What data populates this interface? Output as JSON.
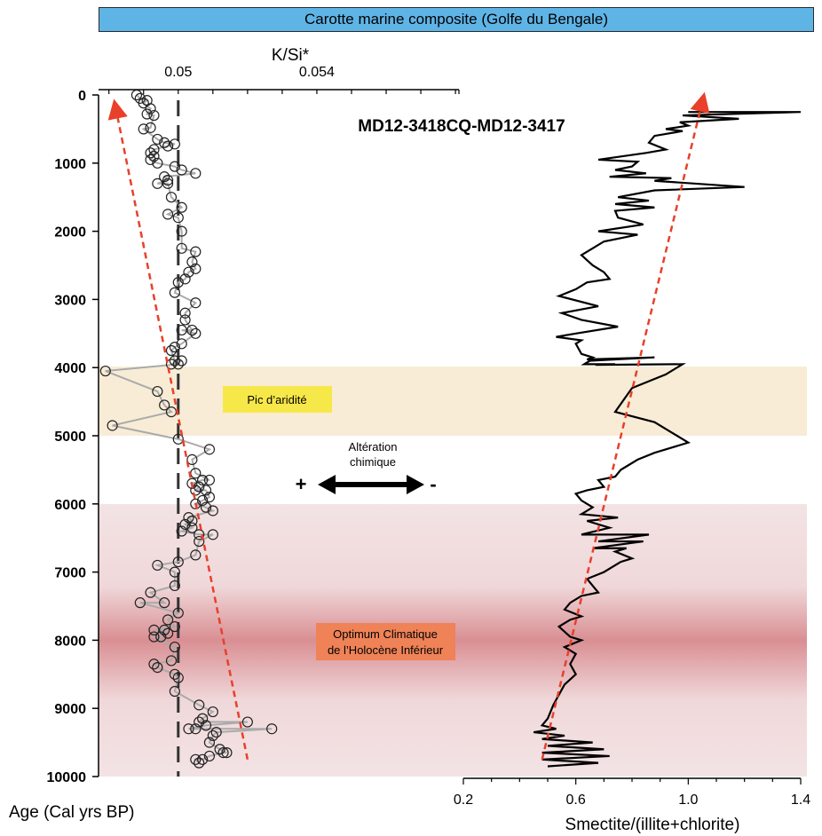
{
  "banner": "Carotte marine composite (Golfe du Bengale)",
  "core_label": "MD12-3418CQ-MD12-3417",
  "colors": {
    "banner_bg": "#5fb4e6",
    "aridity_band": "#f8ecd6",
    "optimum_band_light": "#f3e3e4",
    "optimum_band_dark": "#d98f93",
    "aridity_label_bg": "#f7e849",
    "optimum_label_bg": "#ef8257",
    "trend_arrow": "#e8402a",
    "ksi_line": "#aaaaaa",
    "smectite_line": "#000000"
  },
  "annotations": {
    "aridity": "Pic d’aridité",
    "optimum_line1": "Optimum Climatique",
    "optimum_line2": "de l’Holocène Inférieur",
    "alteration_line1": "Altération",
    "alteration_line2": "chimique",
    "plus": "+",
    "minus": "-"
  },
  "chart_data": [
    {
      "type": "scatter",
      "ylabel": "Age (Cal yrs BP)",
      "xlabel": "K/Si*",
      "x_ticks": [
        "0.05",
        "0.054"
      ],
      "y_ticks": [
        "0",
        "1000",
        "2000",
        "3000",
        "4000",
        "5000",
        "6000",
        "7000",
        "8000",
        "9000",
        "10000"
      ],
      "xlim": [
        0.0477,
        0.0581
      ],
      "ylim": [
        0,
        10000
      ],
      "reference_line_x": 0.05,
      "bands": [
        {
          "from": 4000,
          "to": 5000,
          "label": "Pic d’aridité"
        },
        {
          "from": 6000,
          "to": 10000,
          "label": "Optimum Climatique de l’Holocène Inférieur"
        }
      ],
      "trend": {
        "from": {
          "age": 9750,
          "value": 0.052
        },
        "to": {
          "age": 200,
          "value": 0.0482
        }
      },
      "points": [
        [
          0.0488,
          0
        ],
        [
          0.0489,
          50
        ],
        [
          0.0491,
          80
        ],
        [
          0.049,
          120
        ],
        [
          0.0492,
          200
        ],
        [
          0.0491,
          280
        ],
        [
          0.0493,
          300
        ],
        [
          0.0492,
          480
        ],
        [
          0.049,
          500
        ],
        [
          0.0494,
          650
        ],
        [
          0.0496,
          700
        ],
        [
          0.0499,
          720
        ],
        [
          0.0497,
          750
        ],
        [
          0.0493,
          800
        ],
        [
          0.0492,
          850
        ],
        [
          0.0493,
          900
        ],
        [
          0.0492,
          950
        ],
        [
          0.0494,
          1000
        ],
        [
          0.0499,
          1050
        ],
        [
          0.0501,
          1100
        ],
        [
          0.0505,
          1150
        ],
        [
          0.0496,
          1200
        ],
        [
          0.0497,
          1250
        ],
        [
          0.0494,
          1300
        ],
        [
          0.0497,
          1300
        ],
        [
          0.0498,
          1500
        ],
        [
          0.0501,
          1650
        ],
        [
          0.0497,
          1750
        ],
        [
          0.05,
          1800
        ],
        [
          0.0501,
          2000
        ],
        [
          0.0501,
          2250
        ],
        [
          0.0505,
          2300
        ],
        [
          0.0504,
          2450
        ],
        [
          0.0505,
          2550
        ],
        [
          0.0503,
          2600
        ],
        [
          0.0502,
          2700
        ],
        [
          0.05,
          2750
        ],
        [
          0.0499,
          2900
        ],
        [
          0.0505,
          3050
        ],
        [
          0.0502,
          3200
        ],
        [
          0.0502,
          3300
        ],
        [
          0.0504,
          3450
        ],
        [
          0.0501,
          3450
        ],
        [
          0.0505,
          3500
        ],
        [
          0.0501,
          3650
        ],
        [
          0.0499,
          3700
        ],
        [
          0.0498,
          3750
        ],
        [
          0.0499,
          3900
        ],
        [
          0.0501,
          3900
        ],
        [
          0.0498,
          3950
        ],
        [
          0.05,
          3950
        ],
        [
          0.0479,
          4050
        ],
        [
          0.0494,
          4350
        ],
        [
          0.0496,
          4550
        ],
        [
          0.0498,
          4650
        ],
        [
          0.0481,
          4850
        ],
        [
          0.05,
          5050
        ],
        [
          0.0509,
          5200
        ],
        [
          0.0504,
          5350
        ],
        [
          0.0505,
          5550
        ],
        [
          0.0509,
          5650
        ],
        [
          0.0507,
          5650
        ],
        [
          0.0504,
          5700
        ],
        [
          0.0506,
          5750
        ],
        [
          0.0505,
          5800
        ],
        [
          0.0508,
          5800
        ],
        [
          0.0509,
          5900
        ],
        [
          0.0507,
          5950
        ],
        [
          0.0505,
          6000
        ],
        [
          0.0508,
          6050
        ],
        [
          0.051,
          6100
        ],
        [
          0.0503,
          6200
        ],
        [
          0.0504,
          6250
        ],
        [
          0.0502,
          6300
        ],
        [
          0.0504,
          6350
        ],
        [
          0.0501,
          6400
        ],
        [
          0.0506,
          6450
        ],
        [
          0.051,
          6450
        ],
        [
          0.0506,
          6550
        ],
        [
          0.0505,
          6750
        ],
        [
          0.05,
          6850
        ],
        [
          0.0494,
          6900
        ],
        [
          0.0499,
          7000
        ],
        [
          0.0499,
          7200
        ],
        [
          0.0492,
          7300
        ],
        [
          0.0496,
          7450
        ],
        [
          0.0489,
          7450
        ],
        [
          0.05,
          7600
        ],
        [
          0.0497,
          7700
        ],
        [
          0.0499,
          7800
        ],
        [
          0.0493,
          7850
        ],
        [
          0.0496,
          7850
        ],
        [
          0.0497,
          7900
        ],
        [
          0.0495,
          7950
        ],
        [
          0.0493,
          7950
        ],
        [
          0.0499,
          8100
        ],
        [
          0.0498,
          8300
        ],
        [
          0.0493,
          8350
        ],
        [
          0.0494,
          8400
        ],
        [
          0.0499,
          8500
        ],
        [
          0.05,
          8550
        ],
        [
          0.0499,
          8750
        ],
        [
          0.0506,
          8950
        ],
        [
          0.051,
          9050
        ],
        [
          0.0507,
          9150
        ],
        [
          0.0506,
          9200
        ],
        [
          0.052,
          9200
        ],
        [
          0.0508,
          9250
        ],
        [
          0.0503,
          9300
        ],
        [
          0.0505,
          9300
        ],
        [
          0.0527,
          9300
        ],
        [
          0.0511,
          9350
        ],
        [
          0.051,
          9400
        ],
        [
          0.0509,
          9500
        ],
        [
          0.0512,
          9600
        ],
        [
          0.0514,
          9650
        ],
        [
          0.0513,
          9650
        ],
        [
          0.0509,
          9700
        ],
        [
          0.0507,
          9750
        ],
        [
          0.0505,
          9750
        ],
        [
          0.0506,
          9800
        ]
      ]
    },
    {
      "type": "line",
      "xlabel": "Smectite/(illite+chlorite)",
      "x_ticks": [
        "0.2",
        "0.6",
        "1.0",
        "1.4"
      ],
      "xlim": [
        0.2,
        1.4
      ],
      "ylim": [
        0,
        10000
      ],
      "trend": {
        "from": {
          "age": 9750,
          "value": 0.48
        },
        "to": {
          "age": 100,
          "value": 1.05
        }
      },
      "series": [
        {
          "values": [
            [
              1.0,
              250
            ],
            [
              1.4,
              250
            ],
            [
              0.98,
              300
            ],
            [
              1.18,
              350
            ],
            [
              0.97,
              400
            ],
            [
              1.0,
              450
            ],
            [
              0.92,
              500
            ],
            [
              0.98,
              530
            ],
            [
              0.88,
              600
            ],
            [
              0.86,
              700
            ],
            [
              0.92,
              800
            ],
            [
              0.85,
              850
            ],
            [
              0.68,
              950
            ],
            [
              0.82,
              980
            ],
            [
              0.8,
              1050
            ],
            [
              0.74,
              1100
            ],
            [
              0.85,
              1150
            ],
            [
              0.72,
              1200
            ],
            [
              0.94,
              1220
            ],
            [
              0.88,
              1260
            ],
            [
              1.2,
              1350
            ],
            [
              0.88,
              1400
            ],
            [
              0.75,
              1500
            ],
            [
              0.86,
              1550
            ],
            [
              0.74,
              1600
            ],
            [
              0.88,
              1650
            ],
            [
              0.74,
              1700
            ],
            [
              0.75,
              1800
            ],
            [
              0.84,
              1900
            ],
            [
              0.68,
              2000
            ],
            [
              0.82,
              2050
            ],
            [
              0.7,
              2150
            ],
            [
              0.66,
              2250
            ],
            [
              0.62,
              2350
            ],
            [
              0.66,
              2500
            ],
            [
              0.7,
              2600
            ],
            [
              0.72,
              2700
            ],
            [
              0.64,
              2750
            ],
            [
              0.6,
              2850
            ],
            [
              0.54,
              2950
            ],
            [
              0.68,
              3100
            ],
            [
              0.55,
              3200
            ],
            [
              0.62,
              3300
            ],
            [
              0.75,
              3400
            ],
            [
              0.6,
              3500
            ],
            [
              0.53,
              3550
            ],
            [
              0.62,
              3600
            ],
            [
              0.6,
              3650
            ],
            [
              0.62,
              3800
            ],
            [
              0.66,
              3850
            ],
            [
              0.64,
              3880
            ],
            [
              0.88,
              3850
            ],
            [
              0.65,
              3900
            ],
            [
              0.63,
              3950
            ],
            [
              0.74,
              3950
            ],
            [
              0.67,
              3960
            ],
            [
              0.98,
              3950
            ],
            [
              0.92,
              4100
            ],
            [
              0.8,
              4300
            ],
            [
              0.74,
              4650
            ],
            [
              0.88,
              4800
            ],
            [
              0.94,
              4950
            ],
            [
              1.0,
              5100
            ],
            [
              0.88,
              5250
            ],
            [
              0.82,
              5350
            ],
            [
              0.76,
              5500
            ],
            [
              0.74,
              5600
            ],
            [
              0.68,
              5650
            ],
            [
              0.7,
              5750
            ],
            [
              0.64,
              5800
            ],
            [
              0.6,
              5850
            ],
            [
              0.62,
              5950
            ],
            [
              0.66,
              6050
            ],
            [
              0.62,
              6150
            ],
            [
              0.75,
              6200
            ],
            [
              0.64,
              6250
            ],
            [
              0.72,
              6350
            ],
            [
              0.62,
              6450
            ],
            [
              0.86,
              6450
            ],
            [
              0.68,
              6550
            ],
            [
              0.84,
              6550
            ],
            [
              0.66,
              6650
            ],
            [
              0.78,
              6650
            ],
            [
              0.74,
              6700
            ],
            [
              0.8,
              6800
            ],
            [
              0.76,
              6850
            ],
            [
              0.7,
              7000
            ],
            [
              0.64,
              7100
            ],
            [
              0.68,
              7300
            ],
            [
              0.62,
              7350
            ],
            [
              0.58,
              7450
            ],
            [
              0.56,
              7550
            ],
            [
              0.62,
              7650
            ],
            [
              0.58,
              7700
            ],
            [
              0.54,
              7800
            ],
            [
              0.58,
              7950
            ],
            [
              0.62,
              8000
            ],
            [
              0.56,
              8100
            ],
            [
              0.6,
              8200
            ],
            [
              0.58,
              8350
            ],
            [
              0.6,
              8500
            ],
            [
              0.56,
              8650
            ],
            [
              0.54,
              8800
            ],
            [
              0.52,
              8950
            ],
            [
              0.51,
              9050
            ],
            [
              0.5,
              9150
            ],
            [
              0.48,
              9250
            ],
            [
              0.53,
              9300
            ],
            [
              0.45,
              9350
            ],
            [
              0.56,
              9400
            ],
            [
              0.48,
              9450
            ],
            [
              0.66,
              9500
            ],
            [
              0.5,
              9550
            ],
            [
              0.7,
              9600
            ],
            [
              0.48,
              9650
            ],
            [
              0.72,
              9700
            ],
            [
              0.48,
              9750
            ],
            [
              0.68,
              9800
            ],
            [
              0.5,
              9850
            ]
          ]
        }
      ]
    }
  ]
}
